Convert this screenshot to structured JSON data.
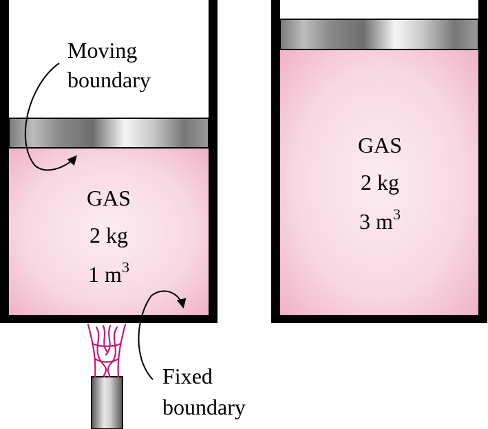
{
  "left_cylinder": {
    "gas_label": "GAS",
    "mass": "2 kg",
    "volume_number": "1",
    "volume_unit": "m",
    "volume_exponent": "3"
  },
  "right_cylinder": {
    "gas_label": "GAS",
    "mass": "2 kg",
    "volume_number": "3",
    "volume_unit": "m",
    "volume_exponent": "3"
  },
  "annotations": {
    "moving_boundary_line1": "Moving",
    "moving_boundary_line2": "boundary",
    "fixed_boundary_line1": "Fixed",
    "fixed_boundary_line2": "boundary"
  },
  "colors": {
    "gas_fill_center": "#fbe8ef",
    "gas_fill_edge": "#f3b7cc",
    "wall": "#000000",
    "piston_light": "#f2f2f2",
    "piston_dark": "#6b6b6b",
    "flame": "#c2197a"
  }
}
